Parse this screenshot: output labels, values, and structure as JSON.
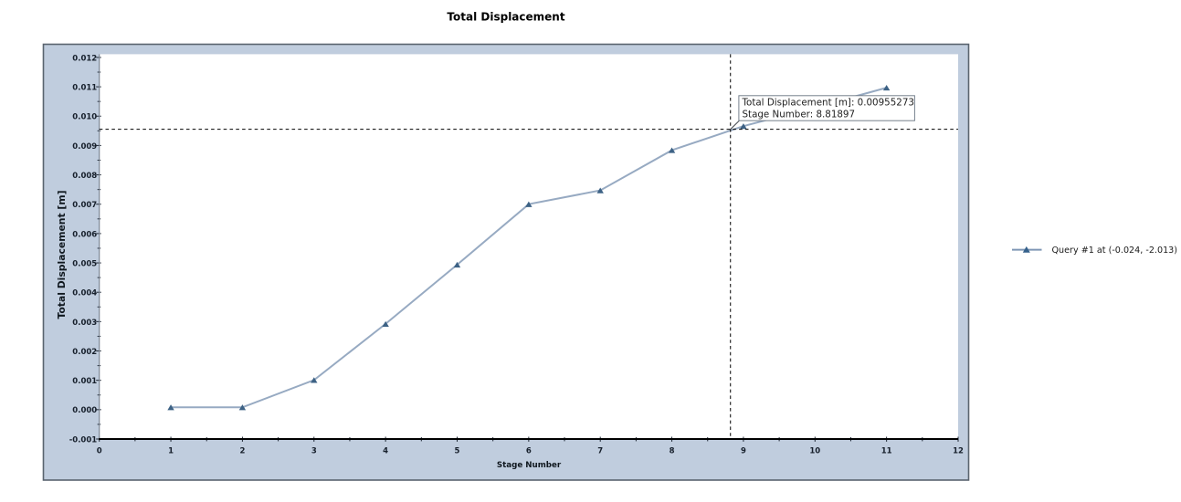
{
  "page": {
    "background": "#ffffff"
  },
  "chart": {
    "title": "Total Displacement",
    "xlabel": "Stage Number",
    "ylabel": "Total Displacement [m]",
    "style": {
      "panel_bg": "#c0cdde",
      "panel_border": "#5a646f",
      "plot_bg": "#ffffff",
      "x_axis_color": "#000000",
      "y_axis_color": "#7d8795",
      "tick_color": "#1b2430",
      "tick_label_color": "#161f2b",
      "title_color": "#000000",
      "axis_title_color": "#10181f",
      "series_line_color": "#97aac2",
      "marker_color": "#3d6285",
      "crosshair_color": "#000000",
      "tooltip_bg": "#ffffff",
      "tooltip_border": "#75808c",
      "tooltip_text_color": "#1f1f1f",
      "legend_line_color": "#7e96b5",
      "legend_marker_color": "#35618b",
      "legend_text_color": "#1a1a1a"
    }
  },
  "chart_data": {
    "type": "line",
    "title": "Total Displacement",
    "xlabel": "Stage Number",
    "ylabel": "Total Displacement [m]",
    "x": [
      1,
      2,
      3,
      4,
      5,
      6,
      7,
      8,
      9,
      10,
      11
    ],
    "series": [
      {
        "name": "Query #1 at (-0.024, -2.013)",
        "values": [
          8e-05,
          8e-05,
          0.00101,
          0.00292,
          0.00494,
          0.007,
          0.00747,
          0.00884,
          0.00966,
          0.0103,
          0.01097
        ]
      }
    ],
    "xlim": [
      0,
      12
    ],
    "ylim": [
      -0.001,
      0.01211
    ],
    "x_ticks": [
      "0",
      "1",
      "2",
      "3",
      "4",
      "5",
      "6",
      "7",
      "8",
      "9",
      "10",
      "11",
      "12"
    ],
    "y_ticks": [
      "-0.001",
      "0.000",
      "0.001",
      "0.002",
      "0.003",
      "0.004",
      "0.005",
      "0.006",
      "0.007",
      "0.008",
      "0.009",
      "0.010",
      "0.011",
      "0.012"
    ],
    "grid": "off",
    "marker": "triangle-up",
    "legend_position": "right",
    "crosshair": {
      "x": 8.81897,
      "y": 0.00955273
    },
    "tooltip": {
      "line1": "Total Displacement [m]: 0.00955273",
      "line2": "Stage Number: 8.81897"
    },
    "legend": {
      "label": "Query #1 at (-0.024, -2.013)"
    }
  }
}
